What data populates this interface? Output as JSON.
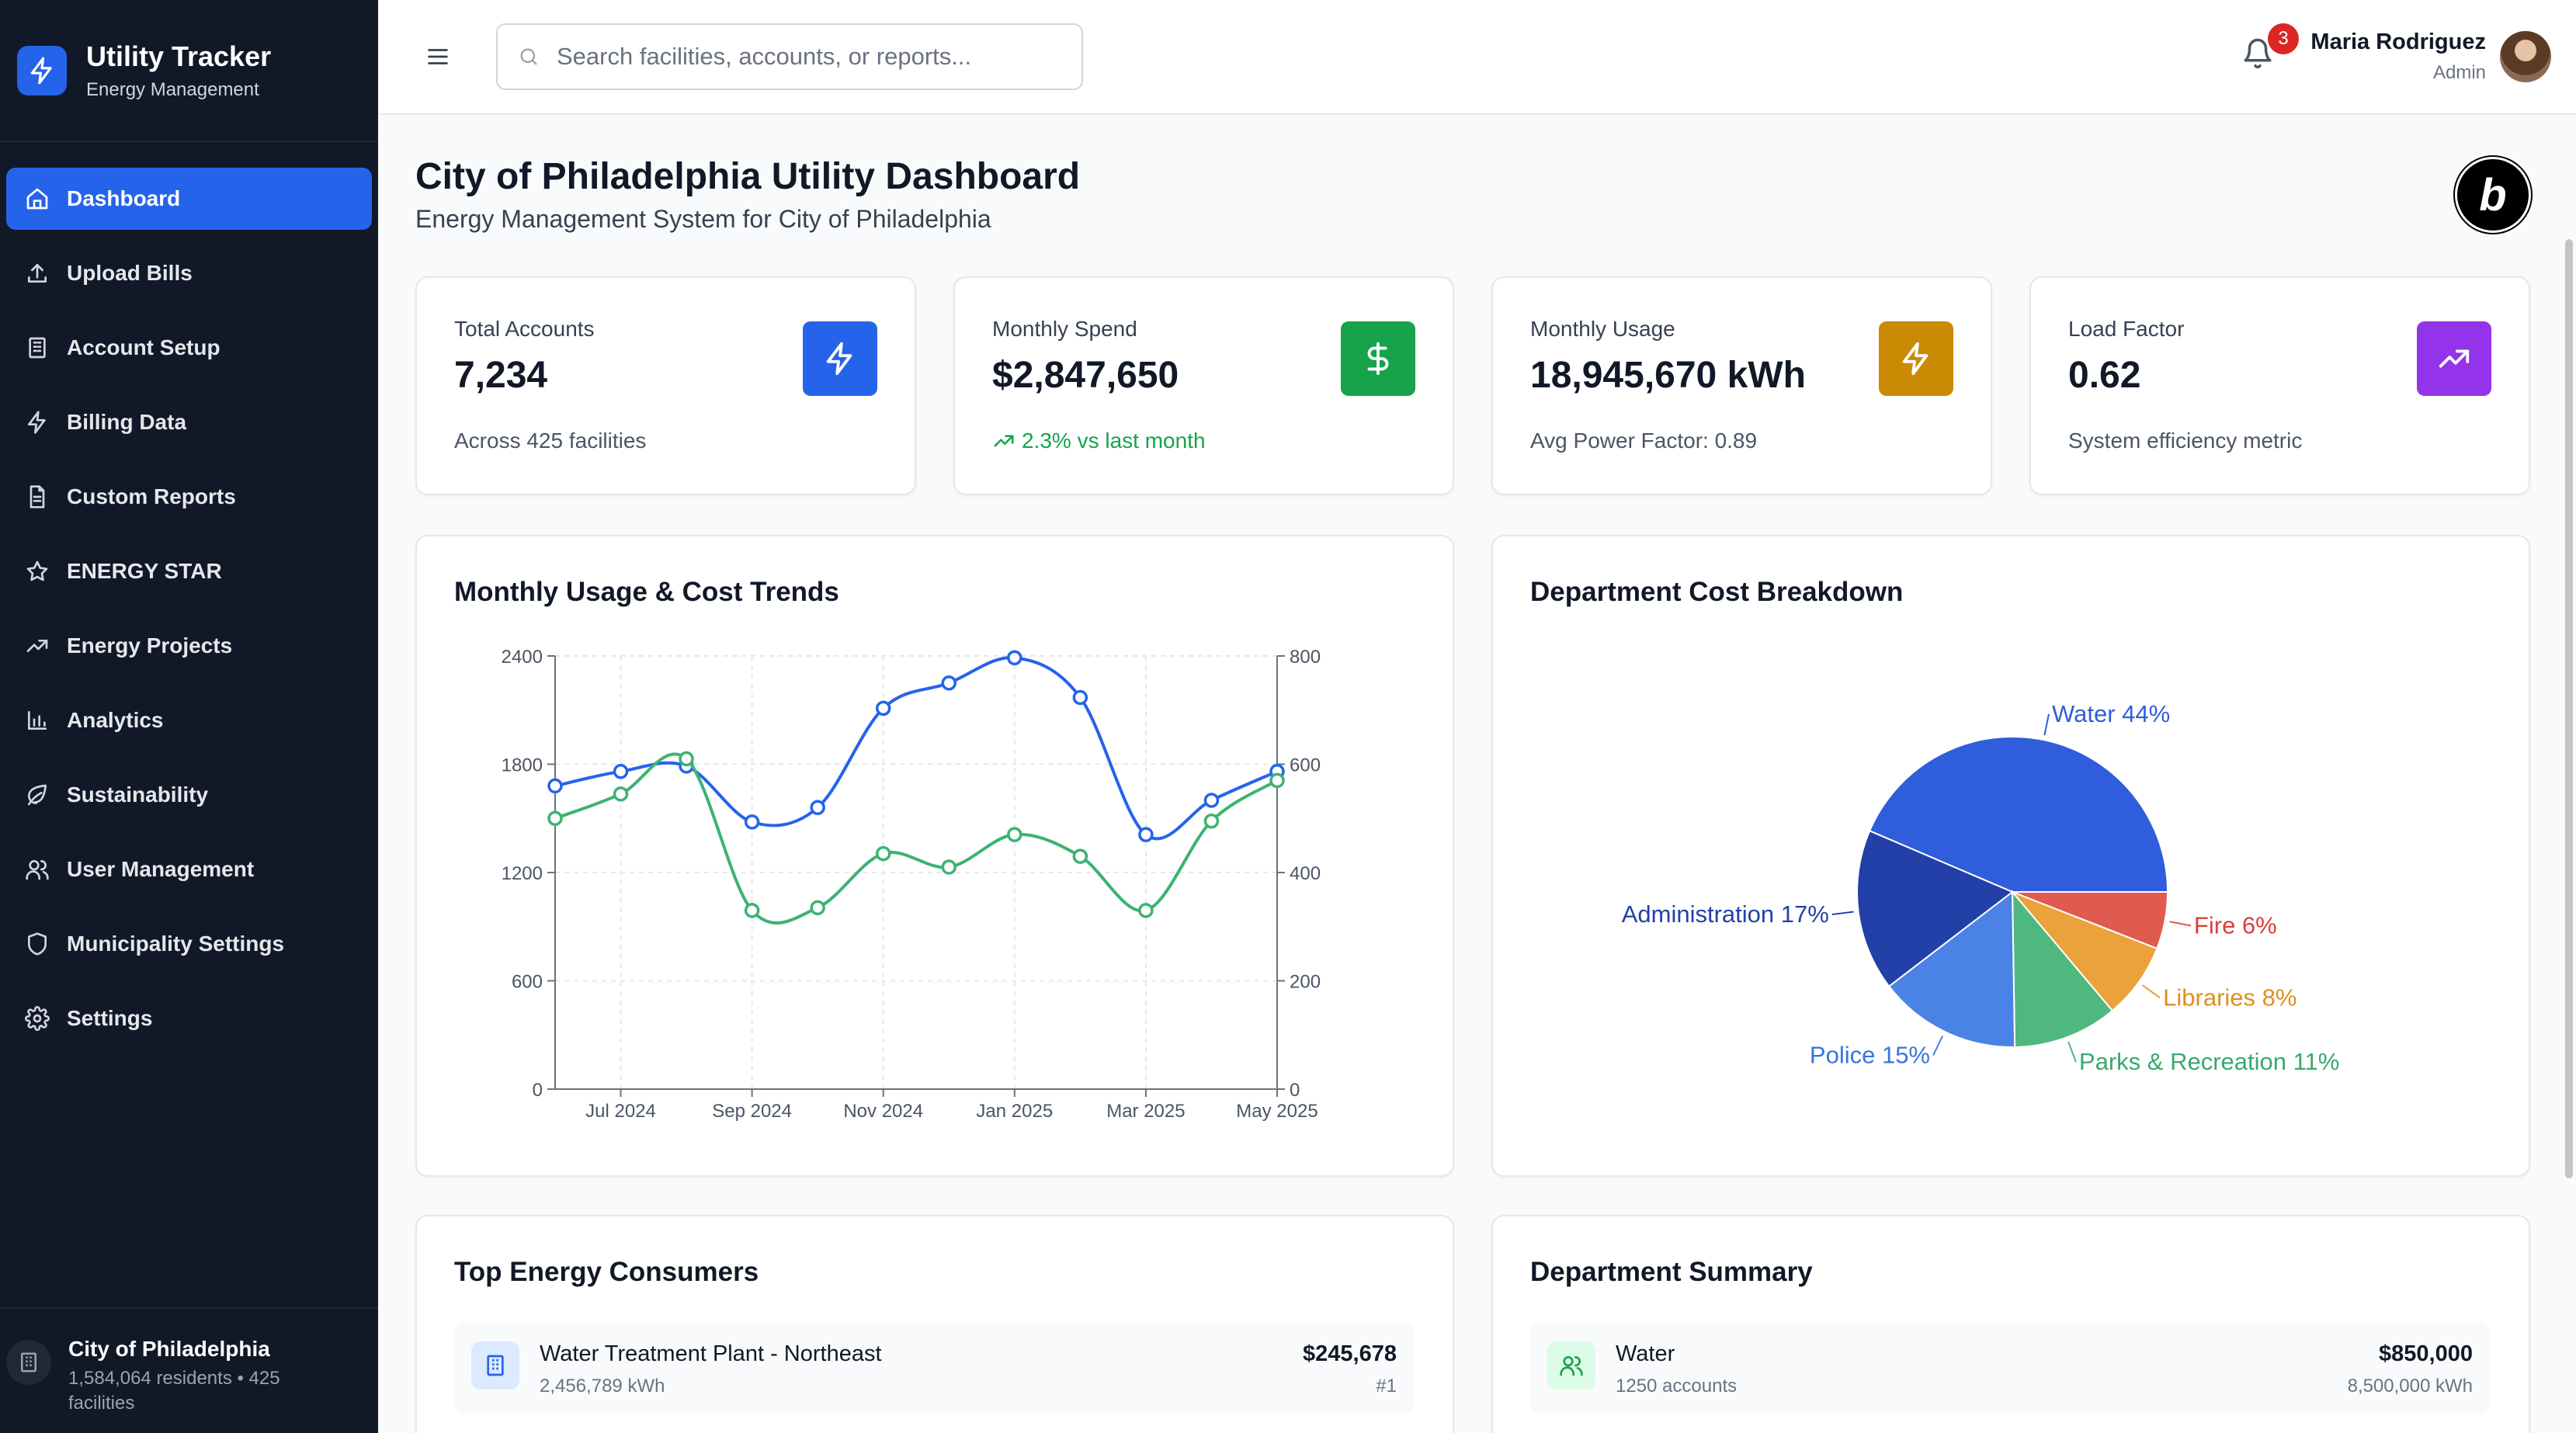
{
  "brand": {
    "title": "Utility Tracker",
    "subtitle": "Energy Management"
  },
  "sidebar": {
    "items": [
      {
        "label": "Dashboard",
        "icon": "home-icon",
        "active": true
      },
      {
        "label": "Upload Bills",
        "icon": "upload-icon"
      },
      {
        "label": "Account Setup",
        "icon": "building-icon"
      },
      {
        "label": "Billing Data",
        "icon": "bolt-icon"
      },
      {
        "label": "Custom Reports",
        "icon": "document-icon"
      },
      {
        "label": "ENERGY STAR",
        "icon": "star-icon"
      },
      {
        "label": "Energy Projects",
        "icon": "trending-up-icon"
      },
      {
        "label": "Analytics",
        "icon": "bar-chart-icon"
      },
      {
        "label": "Sustainability",
        "icon": "leaf-icon"
      },
      {
        "label": "User Management",
        "icon": "users-icon"
      },
      {
        "label": "Municipality Settings",
        "icon": "shield-icon"
      },
      {
        "label": "Settings",
        "icon": "gear-icon"
      }
    ],
    "footer": {
      "name": "City of Philadelphia",
      "meta": "1,584,064 residents • 425 facilities"
    }
  },
  "topbar": {
    "search_placeholder": "Search facilities, accounts, or reports...",
    "notifications": "3",
    "user_name": "Maria Rodriguez",
    "user_role": "Admin"
  },
  "page": {
    "title": "City of Philadelphia Utility Dashboard",
    "subtitle": "Energy Management System for City of Philadelphia",
    "badge_letter": "b"
  },
  "stats": [
    {
      "label": "Total Accounts",
      "value": "7,234",
      "foot": "Across 425 facilities",
      "icon": "bolt-icon",
      "color": "#2563eb"
    },
    {
      "label": "Monthly Spend",
      "value": "$2,847,650",
      "foot": "2.3% vs last month",
      "icon": "dollar-icon",
      "color": "#16a34a",
      "trend": true
    },
    {
      "label": "Monthly Usage",
      "value": "18,945,670 kWh",
      "foot": "Avg Power Factor: 0.89",
      "icon": "bolt-icon",
      "color": "#ca8a04"
    },
    {
      "label": "Load Factor",
      "value": "0.62",
      "foot": "System efficiency metric",
      "icon": "trending-up-icon",
      "color": "#9333ea"
    }
  ],
  "line_chart_title": "Monthly Usage & Cost Trends",
  "pie_chart_title": "Department Cost Breakdown",
  "chart_data": [
    {
      "type": "line",
      "title": "Monthly Usage & Cost Trends",
      "x": [
        "Jun 2024",
        "Jul 2024",
        "Aug 2024",
        "Sep 2024",
        "Oct 2024",
        "Nov 2024",
        "Dec 2024",
        "Jan 2025",
        "Feb 2025",
        "Mar 2025",
        "Apr 2025",
        "May 2025"
      ],
      "x_tick_labels": [
        "Jul 2024",
        "Sep 2024",
        "Nov 2024",
        "Jan 2025",
        "Mar 2025",
        "May 2025"
      ],
      "y_left": {
        "ticks": [
          0,
          600,
          1200,
          1800,
          2400
        ],
        "range": [
          0,
          2400
        ]
      },
      "y_right": {
        "ticks": [
          0,
          200,
          400,
          600,
          800
        ],
        "range": [
          0,
          800
        ]
      },
      "series": [
        {
          "color": "#2563eb",
          "axis": "left",
          "values": [
            1680,
            1760,
            1790,
            1480,
            1560,
            2110,
            2250,
            2390,
            2170,
            1410,
            1600,
            1760
          ]
        },
        {
          "color": "#3cb371",
          "axis": "right",
          "values": [
            500,
            545,
            610,
            330,
            335,
            435,
            410,
            470,
            430,
            330,
            495,
            570
          ]
        }
      ],
      "grid": true
    },
    {
      "type": "pie",
      "title": "Department Cost Breakdown",
      "slices": [
        {
          "label": "Water",
          "value": 44,
          "color": "#2f5ddb",
          "text_color": "#2f5ddb",
          "display": "Water 44%"
        },
        {
          "label": "Fire",
          "value": 6,
          "color": "#e05a4f",
          "text_color": "#d9413a",
          "display": "Fire 6%"
        },
        {
          "label": "Libraries",
          "value": 8,
          "color": "#eba23a",
          "text_color": "#e08f1e",
          "display": "Libraries 8%"
        },
        {
          "label": "Parks & Recreation",
          "value": 11,
          "color": "#4fb87f",
          "text_color": "#3aa86d",
          "display": "Parks & Recreation 11%"
        },
        {
          "label": "Police",
          "value": 15,
          "color": "#4a82e6",
          "text_color": "#3a73db",
          "display": "Police 15%"
        },
        {
          "label": "Administration",
          "value": 17,
          "color": "#2340a8",
          "text_color": "#2340a8",
          "display": "Administration 17%"
        }
      ]
    }
  ],
  "top_consumers": {
    "title": "Top Energy Consumers",
    "items": [
      {
        "name": "Water Treatment Plant - Northeast",
        "usage": "2,456,789 kWh",
        "amount": "$245,678",
        "rank": "#1"
      }
    ]
  },
  "dept_summary": {
    "title": "Department Summary",
    "items": [
      {
        "name": "Water",
        "accounts": "1250 accounts",
        "amount": "$850,000",
        "usage": "8,500,000 kWh"
      }
    ]
  }
}
